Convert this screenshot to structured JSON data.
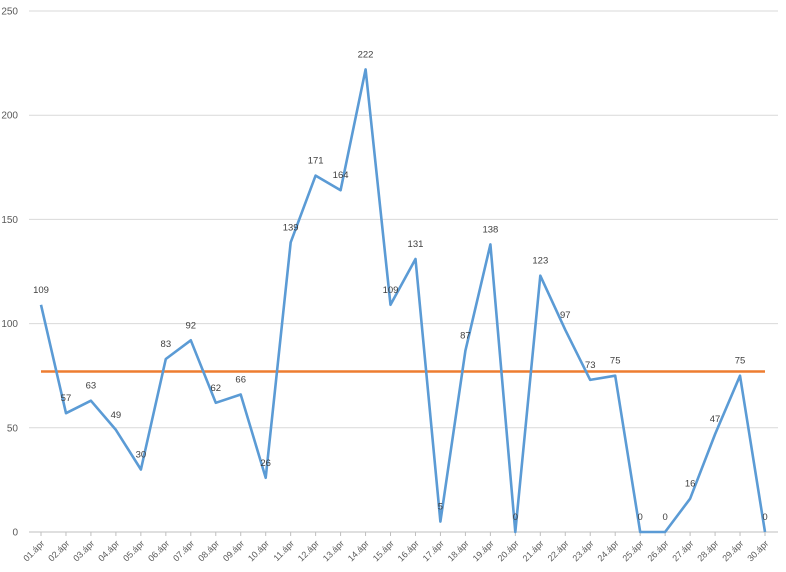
{
  "chart_data": {
    "type": "line",
    "title": "",
    "xlabel": "",
    "ylabel": "",
    "ylim": [
      0,
      250
    ],
    "yticks": [
      0,
      50,
      100,
      150,
      200,
      250
    ],
    "grid": "horizontal",
    "legend": "none",
    "categories": [
      "01.ápr",
      "02.ápr",
      "03.ápr",
      "04.ápr",
      "05.ápr",
      "06.ápr",
      "07.ápr",
      "08.ápr",
      "09.ápr",
      "10.ápr",
      "11.ápr",
      "12.ápr",
      "13.ápr",
      "14.ápr",
      "15.ápr",
      "16.ápr",
      "17.ápr",
      "18.ápr",
      "19.ápr",
      "20.ápr",
      "21.ápr",
      "22.ápr",
      "23.ápr",
      "24.ápr",
      "25.ápr",
      "26.ápr",
      "27.ápr",
      "28.ápr",
      "29.ápr",
      "30.ápr"
    ],
    "series": [
      {
        "values": [
          109,
          57,
          63,
          49,
          30,
          83,
          92,
          62,
          66,
          26,
          139,
          171,
          164,
          222,
          109,
          131,
          5,
          87,
          138,
          0,
          123,
          97,
          73,
          75,
          0,
          0,
          16,
          47,
          75,
          0
        ],
        "color": "#5b9bd5",
        "data_labels": true
      },
      {
        "values": [
          77,
          77,
          77,
          77,
          77,
          77,
          77,
          77,
          77,
          77,
          77,
          77,
          77,
          77,
          77,
          77,
          77,
          77,
          77,
          77,
          77,
          77,
          77,
          77,
          77,
          77,
          77,
          77,
          77,
          77
        ],
        "color": "#ed7d31",
        "data_labels": false
      }
    ]
  }
}
